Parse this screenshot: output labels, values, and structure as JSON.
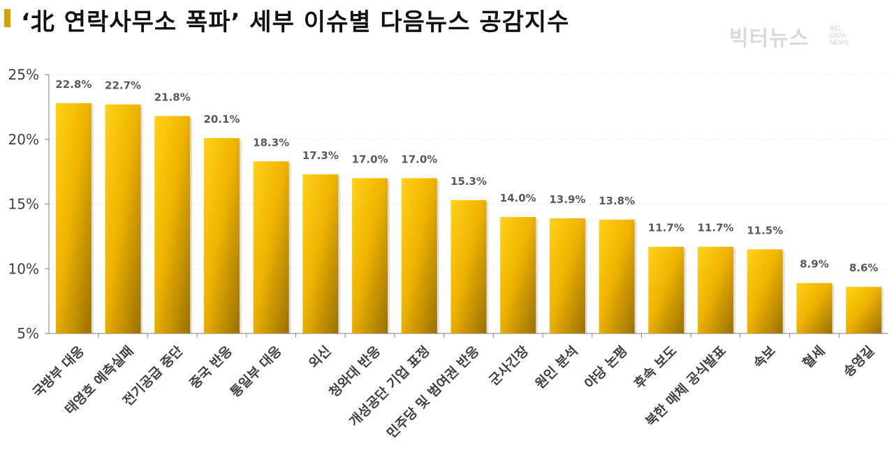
{
  "header": {
    "title": "‘北 연락사무소 폭파’ 세부 이슈별 다음뉴스 공감지수",
    "logo_main": "빅터뉴스",
    "logo_sub": [
      "BIG",
      "DATA",
      "NEWS"
    ]
  },
  "colors": {
    "bar_light": "#ffd11a",
    "bar_mid": "#f0b400",
    "bar_dark": "#9a7000",
    "accent": "#d4a300",
    "grid": "#e6e6e6",
    "axis": "#7f7f7f",
    "label": "#595959"
  },
  "chart_data": {
    "type": "bar",
    "title": "‘北 연락사무소 폭파’ 세부 이슈별 다음뉴스 공감지수",
    "xlabel": "",
    "ylabel": "",
    "ylim": [
      5,
      25
    ],
    "yticks": [
      "5%",
      "10%",
      "15%",
      "20%",
      "25%"
    ],
    "grid": true,
    "categories": [
      "국방부 대응",
      "태영호 예측실패",
      "전기공급 중단",
      "중국 반응",
      "통일부 대응",
      "외신",
      "청와대 반응",
      "개성공단 기업 표정",
      "민주당 및 범여권 반응",
      "군사긴장",
      "원인 분석",
      "야당 논평",
      "후속 보도",
      "북한 매체 공식발표",
      "속보",
      "혈세",
      "송영길"
    ],
    "values": [
      22.8,
      22.7,
      21.8,
      20.1,
      18.3,
      17.3,
      17.0,
      17.0,
      15.3,
      14.0,
      13.9,
      13.8,
      11.7,
      11.7,
      11.5,
      8.9,
      8.6
    ],
    "value_labels": [
      "22.8%",
      "22.7%",
      "21.8%",
      "20.1%",
      "18.3%",
      "17.3%",
      "17.0%",
      "17.0%",
      "15.3%",
      "14.0%",
      "13.9%",
      "13.8%",
      "11.7%",
      "11.7%",
      "11.5%",
      "8.9%",
      "8.6%"
    ]
  }
}
